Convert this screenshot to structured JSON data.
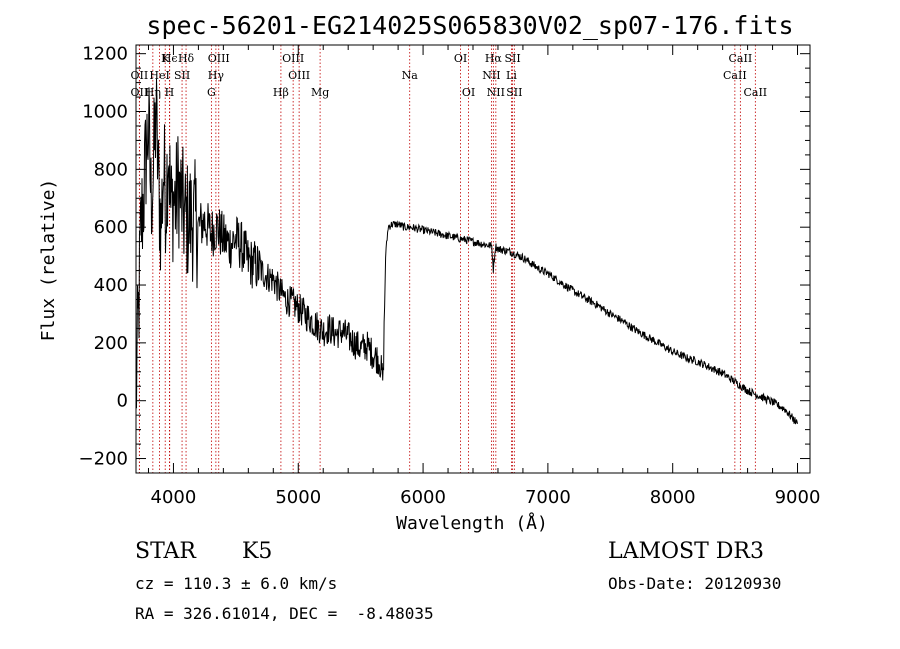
{
  "chart_data": {
    "type": "line",
    "title": "spec-56201-EG214025S065830V02_sp07-176.fits",
    "xlabel": "Wavelength (Å)",
    "ylabel": "Flux (relative)",
    "xlim": [
      3700,
      9100
    ],
    "ylim": [
      -250,
      1230
    ],
    "xticks": [
      4000,
      5000,
      6000,
      7000,
      8000,
      9000
    ],
    "xtick_labels": [
      "4000",
      "5000",
      "6000",
      "7000",
      "8000",
      "9000"
    ],
    "yticks": [
      -200,
      0,
      200,
      400,
      600,
      800,
      1000,
      1200
    ],
    "ytick_labels": [
      "−200",
      "0",
      "200",
      "400",
      "600",
      "800",
      "1000",
      "1200"
    ],
    "grid": false,
    "series": [
      {
        "name": "flux",
        "x": [
          3700,
          3720,
          3740,
          3760,
          3780,
          3800,
          3820,
          3840,
          3860,
          3880,
          3900,
          3920,
          3940,
          3960,
          3980,
          4000,
          4020,
          4040,
          4060,
          4080,
          4100,
          4150,
          4200,
          4250,
          4300,
          4350,
          4400,
          4450,
          4500,
          4550,
          4600,
          4650,
          4700,
          4750,
          4800,
          4850,
          4900,
          4950,
          5000,
          5050,
          5100,
          5150,
          5200,
          5250,
          5300,
          5350,
          5400,
          5450,
          5500,
          5550,
          5600,
          5650,
          5680,
          5700,
          5720,
          5750,
          5800,
          5850,
          5900,
          5950,
          6000,
          6050,
          6100,
          6150,
          6200,
          6250,
          6300,
          6350,
          6400,
          6450,
          6500,
          6550,
          6563,
          6580,
          6600,
          6650,
          6700,
          6750,
          6800,
          6850,
          6900,
          6950,
          7000,
          7100,
          7200,
          7300,
          7400,
          7500,
          7600,
          7700,
          7800,
          7900,
          8000,
          8100,
          8200,
          8300,
          8400,
          8500,
          8600,
          8700,
          8800,
          8900,
          9000
        ],
        "y": [
          0,
          300,
          600,
          700,
          850,
          950,
          700,
          800,
          1000,
          750,
          600,
          800,
          700,
          900,
          650,
          700,
          680,
          750,
          700,
          650,
          620,
          630,
          600,
          620,
          580,
          600,
          560,
          540,
          560,
          530,
          480,
          470,
          450,
          430,
          420,
          380,
          350,
          340,
          320,
          300,
          280,
          260,
          240,
          250,
          230,
          240,
          220,
          200,
          180,
          190,
          160,
          140,
          70,
          500,
          600,
          610,
          610,
          600,
          600,
          595,
          590,
          585,
          580,
          575,
          570,
          565,
          560,
          555,
          550,
          545,
          540,
          535,
          455,
          535,
          525,
          520,
          515,
          505,
          495,
          480,
          465,
          450,
          440,
          410,
          380,
          355,
          330,
          300,
          275,
          245,
          220,
          195,
          170,
          150,
          135,
          115,
          95,
          65,
          35,
          15,
          -5,
          -30,
          -80
        ]
      }
    ],
    "lines": [
      {
        "label": "Hϵ",
        "x": 3970,
        "row": 1
      },
      {
        "label": "K",
        "x": 3934,
        "row": 1
      },
      {
        "label": "Hδ",
        "x": 4101,
        "row": 1
      },
      {
        "label": "OIII",
        "x": 4363,
        "row": 1
      },
      {
        "label": "OIII",
        "x": 4959,
        "row": 1
      },
      {
        "label": "OI",
        "x": 6300,
        "row": 1
      },
      {
        "label": "Hα",
        "x": 6563,
        "row": 1
      },
      {
        "label": "SII",
        "x": 6717,
        "row": 1
      },
      {
        "label": "CaII",
        "x": 8542,
        "row": 1
      },
      {
        "label": "OII",
        "x": 3727,
        "row": 2
      },
      {
        "label": "HeI",
        "x": 3889,
        "row": 2
      },
      {
        "label": "SII",
        "x": 4069,
        "row": 2
      },
      {
        "label": "Hγ",
        "x": 4340,
        "row": 2
      },
      {
        "label": "OIII",
        "x": 5007,
        "row": 2
      },
      {
        "label": "Na",
        "x": 5893,
        "row": 2
      },
      {
        "label": "NII",
        "x": 6548,
        "row": 2
      },
      {
        "label": "Li",
        "x": 6708,
        "row": 2
      },
      {
        "label": "CaII",
        "x": 8498,
        "row": 2
      },
      {
        "label": "OII",
        "x": 3727,
        "row": 3
      },
      {
        "label": "Hη",
        "x": 3835,
        "row": 3
      },
      {
        "label": "H",
        "x": 3968,
        "row": 3
      },
      {
        "label": "G",
        "x": 4304,
        "row": 3
      },
      {
        "label": "Hβ",
        "x": 4861,
        "row": 3
      },
      {
        "label": "Mg",
        "x": 5175,
        "row": 3
      },
      {
        "label": "OI",
        "x": 6364,
        "row": 3
      },
      {
        "label": "NII",
        "x": 6583,
        "row": 3
      },
      {
        "label": "SII",
        "x": 6731,
        "row": 3
      },
      {
        "label": "CaII",
        "x": 8662,
        "row": 3
      }
    ]
  },
  "info": {
    "class": "STAR",
    "subclass": "K5",
    "survey": "LAMOST DR3",
    "cz": "cz = 110.3 ± 6.0 km/s",
    "obs_date": "Obs-Date: 20120930",
    "coords": "RA = 326.61014, DEC =  -8.48035"
  }
}
